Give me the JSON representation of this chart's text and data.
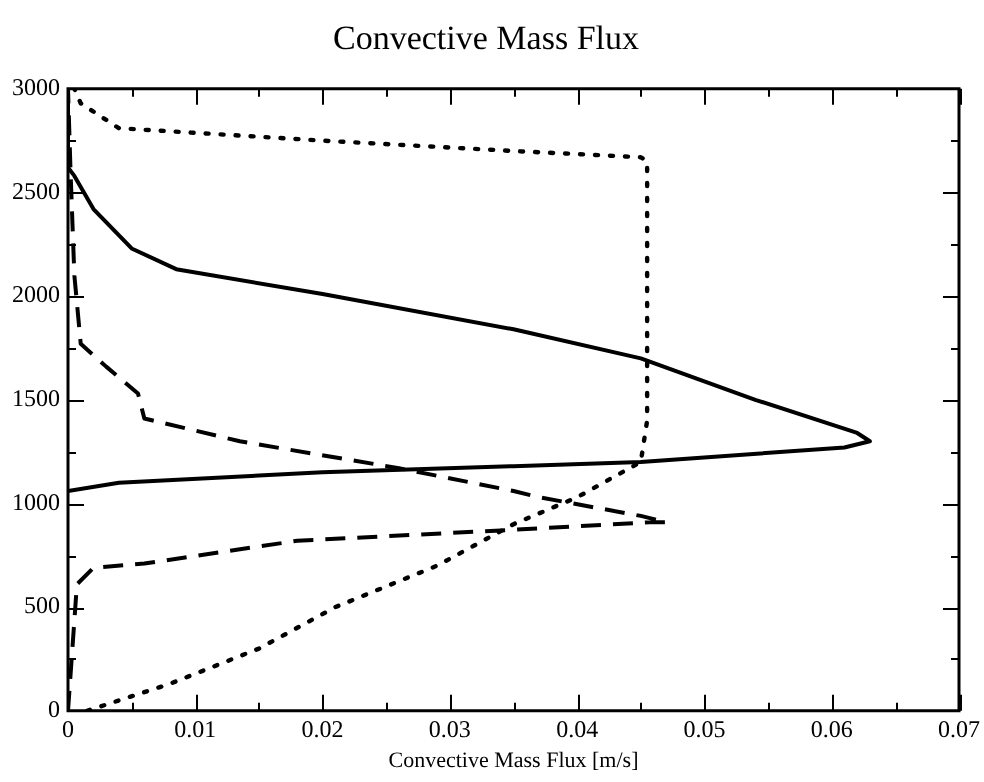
{
  "chart_data": {
    "type": "line",
    "title": "Convective Mass Flux",
    "xlabel": "Convective Mass Flux [m/s]",
    "marker": "none",
    "grid": false,
    "legend": false,
    "xlim": [
      0,
      0.07
    ],
    "xticks": [
      0,
      {
        "value": 0.005,
        "label": null
      },
      0.01,
      {
        "value": 0.015,
        "label": null
      },
      0.02,
      {
        "value": 0.025,
        "label": null
      },
      0.03,
      {
        "value": 0.035,
        "label": null
      },
      0.04,
      {
        "value": 0.045,
        "label": null
      },
      0.05,
      {
        "value": 0.055,
        "label": null
      },
      0.06,
      {
        "value": 0.065,
        "label": null
      },
      0.07
    ],
    "ylim": [
      0,
      3000
    ],
    "yticks": [
      0,
      {
        "value": 250,
        "label": null
      },
      500,
      {
        "value": 750,
        "label": null
      },
      1000,
      {
        "value": 1250,
        "label": null
      },
      1500,
      {
        "value": 1750,
        "label": null
      },
      2000,
      {
        "value": 2250,
        "label": null
      },
      2500,
      {
        "value": 2750,
        "label": null
      },
      3000
    ],
    "series": [
      {
        "color": "#000000",
        "line_style": "solid",
        "x": [
          0,
          0.004,
          0.02,
          0.035,
          0.045,
          0.061,
          0.063,
          0.062,
          0.054,
          0.045,
          0.035,
          0.02,
          0.0085,
          0.005,
          0.002,
          0.0005,
          0,
          0
        ],
        "values": [
          1060,
          1100,
          1150,
          1180,
          1200,
          1270,
          1300,
          1340,
          1500,
          1700,
          1840,
          2010,
          2130,
          2230,
          2420,
          2580,
          2620,
          3000
        ]
      },
      {
        "color": "#000000",
        "line_style": "dashed",
        "x": [
          0,
          0.0007,
          0.002,
          0.006,
          0.018,
          0.034,
          0.046,
          0.047,
          0.045,
          0.037,
          0.035,
          0.026,
          0.0135,
          0.006,
          0.0055,
          0.003,
          0.001,
          0.0005,
          0.0002,
          0
        ],
        "values": [
          0,
          610,
          690,
          710,
          820,
          870,
          910,
          910,
          940,
          1030,
          1060,
          1170,
          1300,
          1410,
          1530,
          1660,
          1770,
          2100,
          2600,
          3000
        ]
      },
      {
        "color": "#000000",
        "line_style": "dotted",
        "x": [
          0.0015,
          0.008,
          0.015,
          0.021,
          0.029,
          0.035,
          0.04,
          0.045,
          0.0455,
          0.0455,
          0.045,
          0.035,
          0.02,
          0.004,
          0.001,
          0.0005
        ],
        "values": [
          0,
          130,
          300,
          500,
          700,
          900,
          1030,
          1200,
          1400,
          2650,
          2670,
          2700,
          2750,
          2810,
          2930,
          3000
        ]
      }
    ]
  }
}
